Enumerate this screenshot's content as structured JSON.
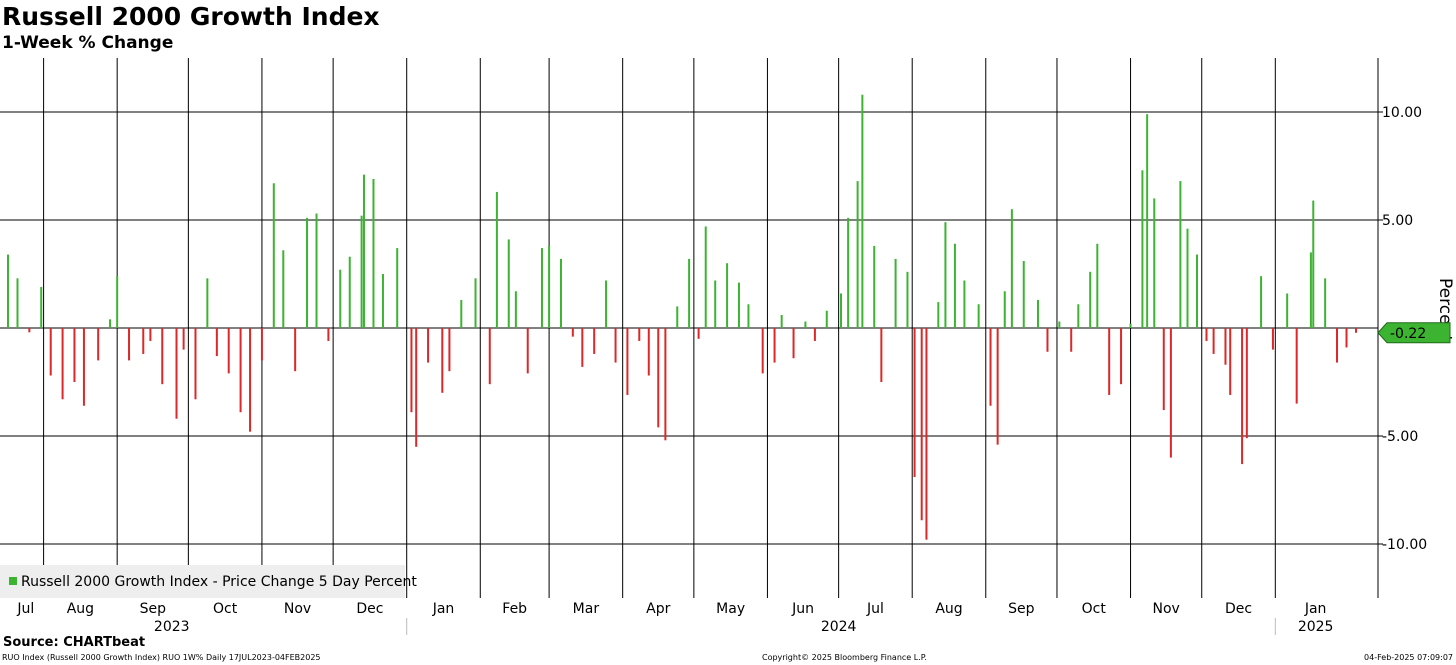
{
  "header": {
    "title": "Russell 2000 Growth Index",
    "subtitle": "1-Week % Change"
  },
  "footer": {
    "source": "Source: CHARTbeat",
    "ticker_line": "RUO Index (Russell 2000 Growth Index) RUO 1W% Daily 17JUL2023-04FEB2025",
    "copyright": "Copyright© 2025 Bloomberg Finance L.P.",
    "timestamp": "04-Feb-2025 07:09:07"
  },
  "colors": {
    "up": "#3cb432",
    "down": "#dc2828",
    "grid": "#000000",
    "label_bg": "#3cb432"
  },
  "chart_data": {
    "type": "bar",
    "title": "Russell 2000 Growth Index",
    "subtitle": "1-Week % Change",
    "ylabel": "Percent",
    "ylim": [
      -12.5,
      12.5
    ],
    "yticks": [
      {
        "value": 10,
        "label": "10.00"
      },
      {
        "value": 5,
        "label": "5.00"
      },
      {
        "value": -5,
        "label": "-5.00"
      },
      {
        "value": -10,
        "label": "-10.00"
      }
    ],
    "grid": true,
    "legend": {
      "placement": "bottom-left",
      "entries": [
        "Russell 2000 Growth Index - Price Change 5 Day Percent"
      ]
    },
    "last_value": {
      "value": -0.22,
      "label": "-0.22"
    },
    "x_start": "2023-07-17",
    "x_end": "2025-02-04",
    "months": [
      {
        "label": "Jul",
        "date": "2023-07-17"
      },
      {
        "label": "Aug",
        "date": "2023-08-01"
      },
      {
        "label": "Sep",
        "date": "2023-09-01"
      },
      {
        "label": "Oct",
        "date": "2023-10-01"
      },
      {
        "label": "Nov",
        "date": "2023-11-01"
      },
      {
        "label": "Dec",
        "date": "2023-12-01"
      },
      {
        "label": "Jan",
        "date": "2024-01-01"
      },
      {
        "label": "Feb",
        "date": "2024-02-01"
      },
      {
        "label": "Mar",
        "date": "2024-03-01"
      },
      {
        "label": "Apr",
        "date": "2024-04-01"
      },
      {
        "label": "May",
        "date": "2024-05-01"
      },
      {
        "label": "Jun",
        "date": "2024-06-01"
      },
      {
        "label": "Jul",
        "date": "2024-07-01"
      },
      {
        "label": "Aug",
        "date": "2024-08-01"
      },
      {
        "label": "Sep",
        "date": "2024-09-01"
      },
      {
        "label": "Oct",
        "date": "2024-10-01"
      },
      {
        "label": "Nov",
        "date": "2024-11-01"
      },
      {
        "label": "Dec",
        "date": "2024-12-01"
      },
      {
        "label": "Jan",
        "date": "2025-01-01"
      }
    ],
    "years": [
      {
        "label": "2023",
        "date": "2023-09-24"
      },
      {
        "label": "2024",
        "date": "2024-07-01"
      },
      {
        "label": "2025",
        "date": "2025-01-18"
      }
    ],
    "series": [
      {
        "name": "Russell 2000 Growth Index - Price Change 5 Day Percent",
        "points": [
          [
            "2023-07-17",
            3.4
          ],
          [
            "2023-07-21",
            2.3
          ],
          [
            "2023-07-26",
            -0.2
          ],
          [
            "2023-07-31",
            1.9
          ],
          [
            "2023-08-04",
            -2.2
          ],
          [
            "2023-08-09",
            -3.3
          ],
          [
            "2023-08-14",
            -2.5
          ],
          [
            "2023-08-18",
            -3.6
          ],
          [
            "2023-08-24",
            -1.5
          ],
          [
            "2023-08-29",
            0.4
          ],
          [
            "2023-09-01",
            2.4
          ],
          [
            "2023-09-06",
            -1.5
          ],
          [
            "2023-09-12",
            -1.2
          ],
          [
            "2023-09-15",
            -0.6
          ],
          [
            "2023-09-20",
            -2.6
          ],
          [
            "2023-09-26",
            -4.2
          ],
          [
            "2023-09-29",
            -1.0
          ],
          [
            "2023-10-04",
            -3.3
          ],
          [
            "2023-10-09",
            2.3
          ],
          [
            "2023-10-13",
            -1.3
          ],
          [
            "2023-10-18",
            -2.1
          ],
          [
            "2023-10-23",
            -3.9
          ],
          [
            "2023-10-27",
            -4.8
          ],
          [
            "2023-11-01",
            -1.5
          ],
          [
            "2023-11-06",
            6.7
          ],
          [
            "2023-11-10",
            3.6
          ],
          [
            "2023-11-15",
            -2.0
          ],
          [
            "2023-11-20",
            5.1
          ],
          [
            "2023-11-24",
            5.3
          ],
          [
            "2023-11-29",
            -0.6
          ],
          [
            "2023-12-04",
            2.7
          ],
          [
            "2023-12-08",
            3.3
          ],
          [
            "2023-12-13",
            5.2
          ],
          [
            "2023-12-14",
            7.1
          ],
          [
            "2023-12-18",
            6.9
          ],
          [
            "2023-12-22",
            2.5
          ],
          [
            "2023-12-28",
            3.7
          ],
          [
            "2024-01-03",
            -3.9
          ],
          [
            "2024-01-05",
            -5.5
          ],
          [
            "2024-01-10",
            -1.6
          ],
          [
            "2024-01-16",
            -3.0
          ],
          [
            "2024-01-19",
            -2.0
          ],
          [
            "2024-01-24",
            1.3
          ],
          [
            "2024-01-30",
            2.3
          ],
          [
            "2024-02-05",
            -2.6
          ],
          [
            "2024-02-08",
            6.3
          ],
          [
            "2024-02-13",
            4.1
          ],
          [
            "2024-02-16",
            1.7
          ],
          [
            "2024-02-21",
            -2.1
          ],
          [
            "2024-02-27",
            3.7
          ],
          [
            "2024-03-01",
            3.8
          ],
          [
            "2024-03-06",
            3.2
          ],
          [
            "2024-03-11",
            -0.4
          ],
          [
            "2024-03-15",
            -1.8
          ],
          [
            "2024-03-20",
            -1.2
          ],
          [
            "2024-03-25",
            2.2
          ],
          [
            "2024-03-29",
            -1.6
          ],
          [
            "2024-04-03",
            -3.1
          ],
          [
            "2024-04-08",
            -0.6
          ],
          [
            "2024-04-12",
            -2.2
          ],
          [
            "2024-04-16",
            -4.6
          ],
          [
            "2024-04-19",
            -5.2
          ],
          [
            "2024-04-24",
            1.0
          ],
          [
            "2024-04-29",
            3.2
          ],
          [
            "2024-05-03",
            -0.5
          ],
          [
            "2024-05-06",
            4.7
          ],
          [
            "2024-05-10",
            2.2
          ],
          [
            "2024-05-15",
            3.0
          ],
          [
            "2024-05-20",
            2.1
          ],
          [
            "2024-05-24",
            1.1
          ],
          [
            "2024-05-30",
            -2.1
          ],
          [
            "2024-06-04",
            -1.6
          ],
          [
            "2024-06-07",
            0.6
          ],
          [
            "2024-06-12",
            -1.4
          ],
          [
            "2024-06-17",
            0.3
          ],
          [
            "2024-06-21",
            -0.6
          ],
          [
            "2024-06-26",
            0.8
          ],
          [
            "2024-07-02",
            1.6
          ],
          [
            "2024-07-05",
            5.1
          ],
          [
            "2024-07-09",
            6.8
          ],
          [
            "2024-07-11",
            10.8
          ],
          [
            "2024-07-16",
            3.8
          ],
          [
            "2024-07-19",
            -2.5
          ],
          [
            "2024-07-25",
            3.2
          ],
          [
            "2024-07-30",
            2.6
          ],
          [
            "2024-08-02",
            -6.9
          ],
          [
            "2024-08-05",
            -8.9
          ],
          [
            "2024-08-07",
            -9.8
          ],
          [
            "2024-08-12",
            1.2
          ],
          [
            "2024-08-15",
            4.9
          ],
          [
            "2024-08-19",
            3.9
          ],
          [
            "2024-08-23",
            2.2
          ],
          [
            "2024-08-29",
            1.1
          ],
          [
            "2024-09-03",
            -3.6
          ],
          [
            "2024-09-06",
            -5.4
          ],
          [
            "2024-09-09",
            1.7
          ],
          [
            "2024-09-12",
            5.5
          ],
          [
            "2024-09-17",
            3.1
          ],
          [
            "2024-09-23",
            1.3
          ],
          [
            "2024-09-27",
            -1.1
          ],
          [
            "2024-10-02",
            0.3
          ],
          [
            "2024-10-07",
            -1.1
          ],
          [
            "2024-10-10",
            1.1
          ],
          [
            "2024-10-15",
            2.6
          ],
          [
            "2024-10-18",
            3.9
          ],
          [
            "2024-10-23",
            -3.1
          ],
          [
            "2024-10-28",
            -2.6
          ],
          [
            "2024-11-01",
            0.2
          ],
          [
            "2024-11-06",
            7.3
          ],
          [
            "2024-11-08",
            9.9
          ],
          [
            "2024-11-11",
            6.0
          ],
          [
            "2024-11-15",
            -3.8
          ],
          [
            "2024-11-18",
            -6.0
          ],
          [
            "2024-11-22",
            6.8
          ],
          [
            "2024-11-25",
            4.6
          ],
          [
            "2024-11-29",
            3.4
          ],
          [
            "2024-12-03",
            -0.6
          ],
          [
            "2024-12-06",
            -1.2
          ],
          [
            "2024-12-11",
            -1.7
          ],
          [
            "2024-12-13",
            -3.1
          ],
          [
            "2024-12-18",
            -6.3
          ],
          [
            "2024-12-20",
            -5.1
          ],
          [
            "2024-12-26",
            2.4
          ],
          [
            "2024-12-31",
            -1.0
          ],
          [
            "2025-01-06",
            1.6
          ],
          [
            "2025-01-10",
            -3.5
          ],
          [
            "2025-01-16",
            3.5
          ],
          [
            "2025-01-17",
            5.9
          ],
          [
            "2025-01-22",
            2.3
          ],
          [
            "2025-01-27",
            -1.6
          ],
          [
            "2025-01-31",
            -0.9
          ],
          [
            "2025-02-04",
            -0.22
          ]
        ]
      }
    ]
  }
}
